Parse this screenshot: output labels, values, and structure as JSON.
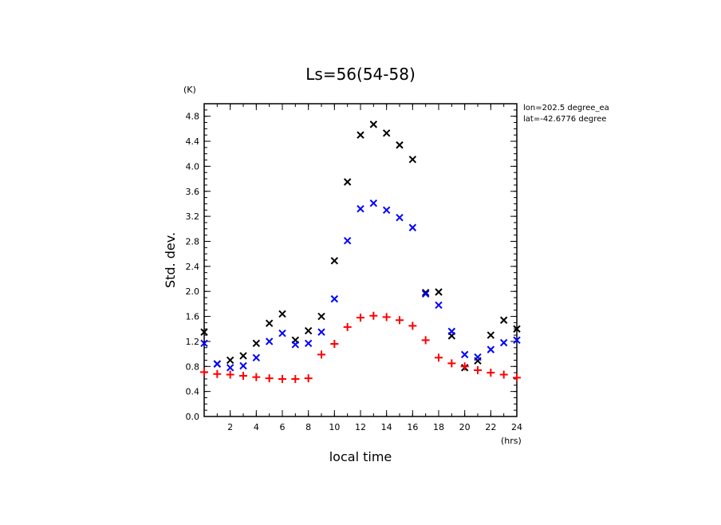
{
  "chart_data": {
    "type": "scatter",
    "title": "Ls=56(54-58)",
    "xlabel": "local time",
    "ylabel": "Std. dev.",
    "x_unit": "(hrs)",
    "y_unit": "(K)",
    "xlim": [
      0,
      24
    ],
    "ylim": [
      0,
      5
    ],
    "x_ticks": [
      2,
      4,
      6,
      8,
      10,
      12,
      14,
      16,
      18,
      20,
      22,
      24
    ],
    "x_tick_labels": [
      "2",
      "4",
      "6",
      "8",
      "10",
      "12",
      "14",
      "16",
      "18",
      "20",
      "22",
      "24"
    ],
    "y_ticks": [
      0,
      0.4,
      0.8,
      1.2,
      1.6,
      2.0,
      2.4,
      2.8,
      3.2,
      3.6,
      4.0,
      4.4,
      4.8
    ],
    "y_tick_labels": [
      "0.0",
      "0.4",
      "0.8",
      "1.2",
      "1.6",
      "2.0",
      "2.4",
      "2.8",
      "3.2",
      "3.6",
      "4.0",
      "4.4",
      "4.8"
    ],
    "grid": false,
    "annotations": [
      "lon=202.5 degree_ea",
      "lat=-42.6776 degree"
    ],
    "series": [
      {
        "color": "#000000",
        "marker": "x",
        "x": [
          0,
          1,
          2,
          3,
          4,
          5,
          6,
          7,
          8,
          9,
          10,
          11,
          12,
          13,
          14,
          15,
          16,
          17,
          18,
          19,
          20,
          21,
          22,
          23,
          24
        ],
        "values": [
          1.35,
          0.84,
          0.9,
          0.97,
          1.17,
          1.49,
          1.64,
          1.22,
          1.37,
          1.6,
          2.49,
          3.75,
          4.5,
          4.67,
          4.53,
          4.34,
          4.11,
          1.98,
          1.99,
          1.29,
          0.78,
          0.89,
          1.3,
          1.54,
          1.4
        ]
      },
      {
        "color": "#0000ff",
        "marker": "x",
        "x": [
          0,
          1,
          2,
          3,
          4,
          5,
          6,
          7,
          8,
          9,
          10,
          11,
          12,
          13,
          14,
          15,
          16,
          17,
          18,
          19,
          20,
          21,
          22,
          23,
          24
        ],
        "values": [
          1.17,
          0.84,
          0.78,
          0.81,
          0.94,
          1.2,
          1.33,
          1.15,
          1.17,
          1.35,
          1.88,
          2.81,
          3.32,
          3.41,
          3.3,
          3.18,
          3.02,
          1.96,
          1.78,
          1.36,
          0.99,
          0.95,
          1.07,
          1.18,
          1.22
        ]
      },
      {
        "color": "#ff0000",
        "marker": "+",
        "x": [
          0,
          1,
          2,
          3,
          4,
          5,
          6,
          7,
          8,
          9,
          10,
          11,
          12,
          13,
          14,
          15,
          16,
          17,
          18,
          19,
          20,
          21,
          22,
          23,
          24
        ],
        "values": [
          0.71,
          0.68,
          0.67,
          0.65,
          0.63,
          0.61,
          0.6,
          0.6,
          0.61,
          0.99,
          1.16,
          1.43,
          1.58,
          1.61,
          1.59,
          1.54,
          1.45,
          1.22,
          0.94,
          0.85,
          0.8,
          0.74,
          0.7,
          0.67,
          0.62
        ]
      }
    ]
  }
}
